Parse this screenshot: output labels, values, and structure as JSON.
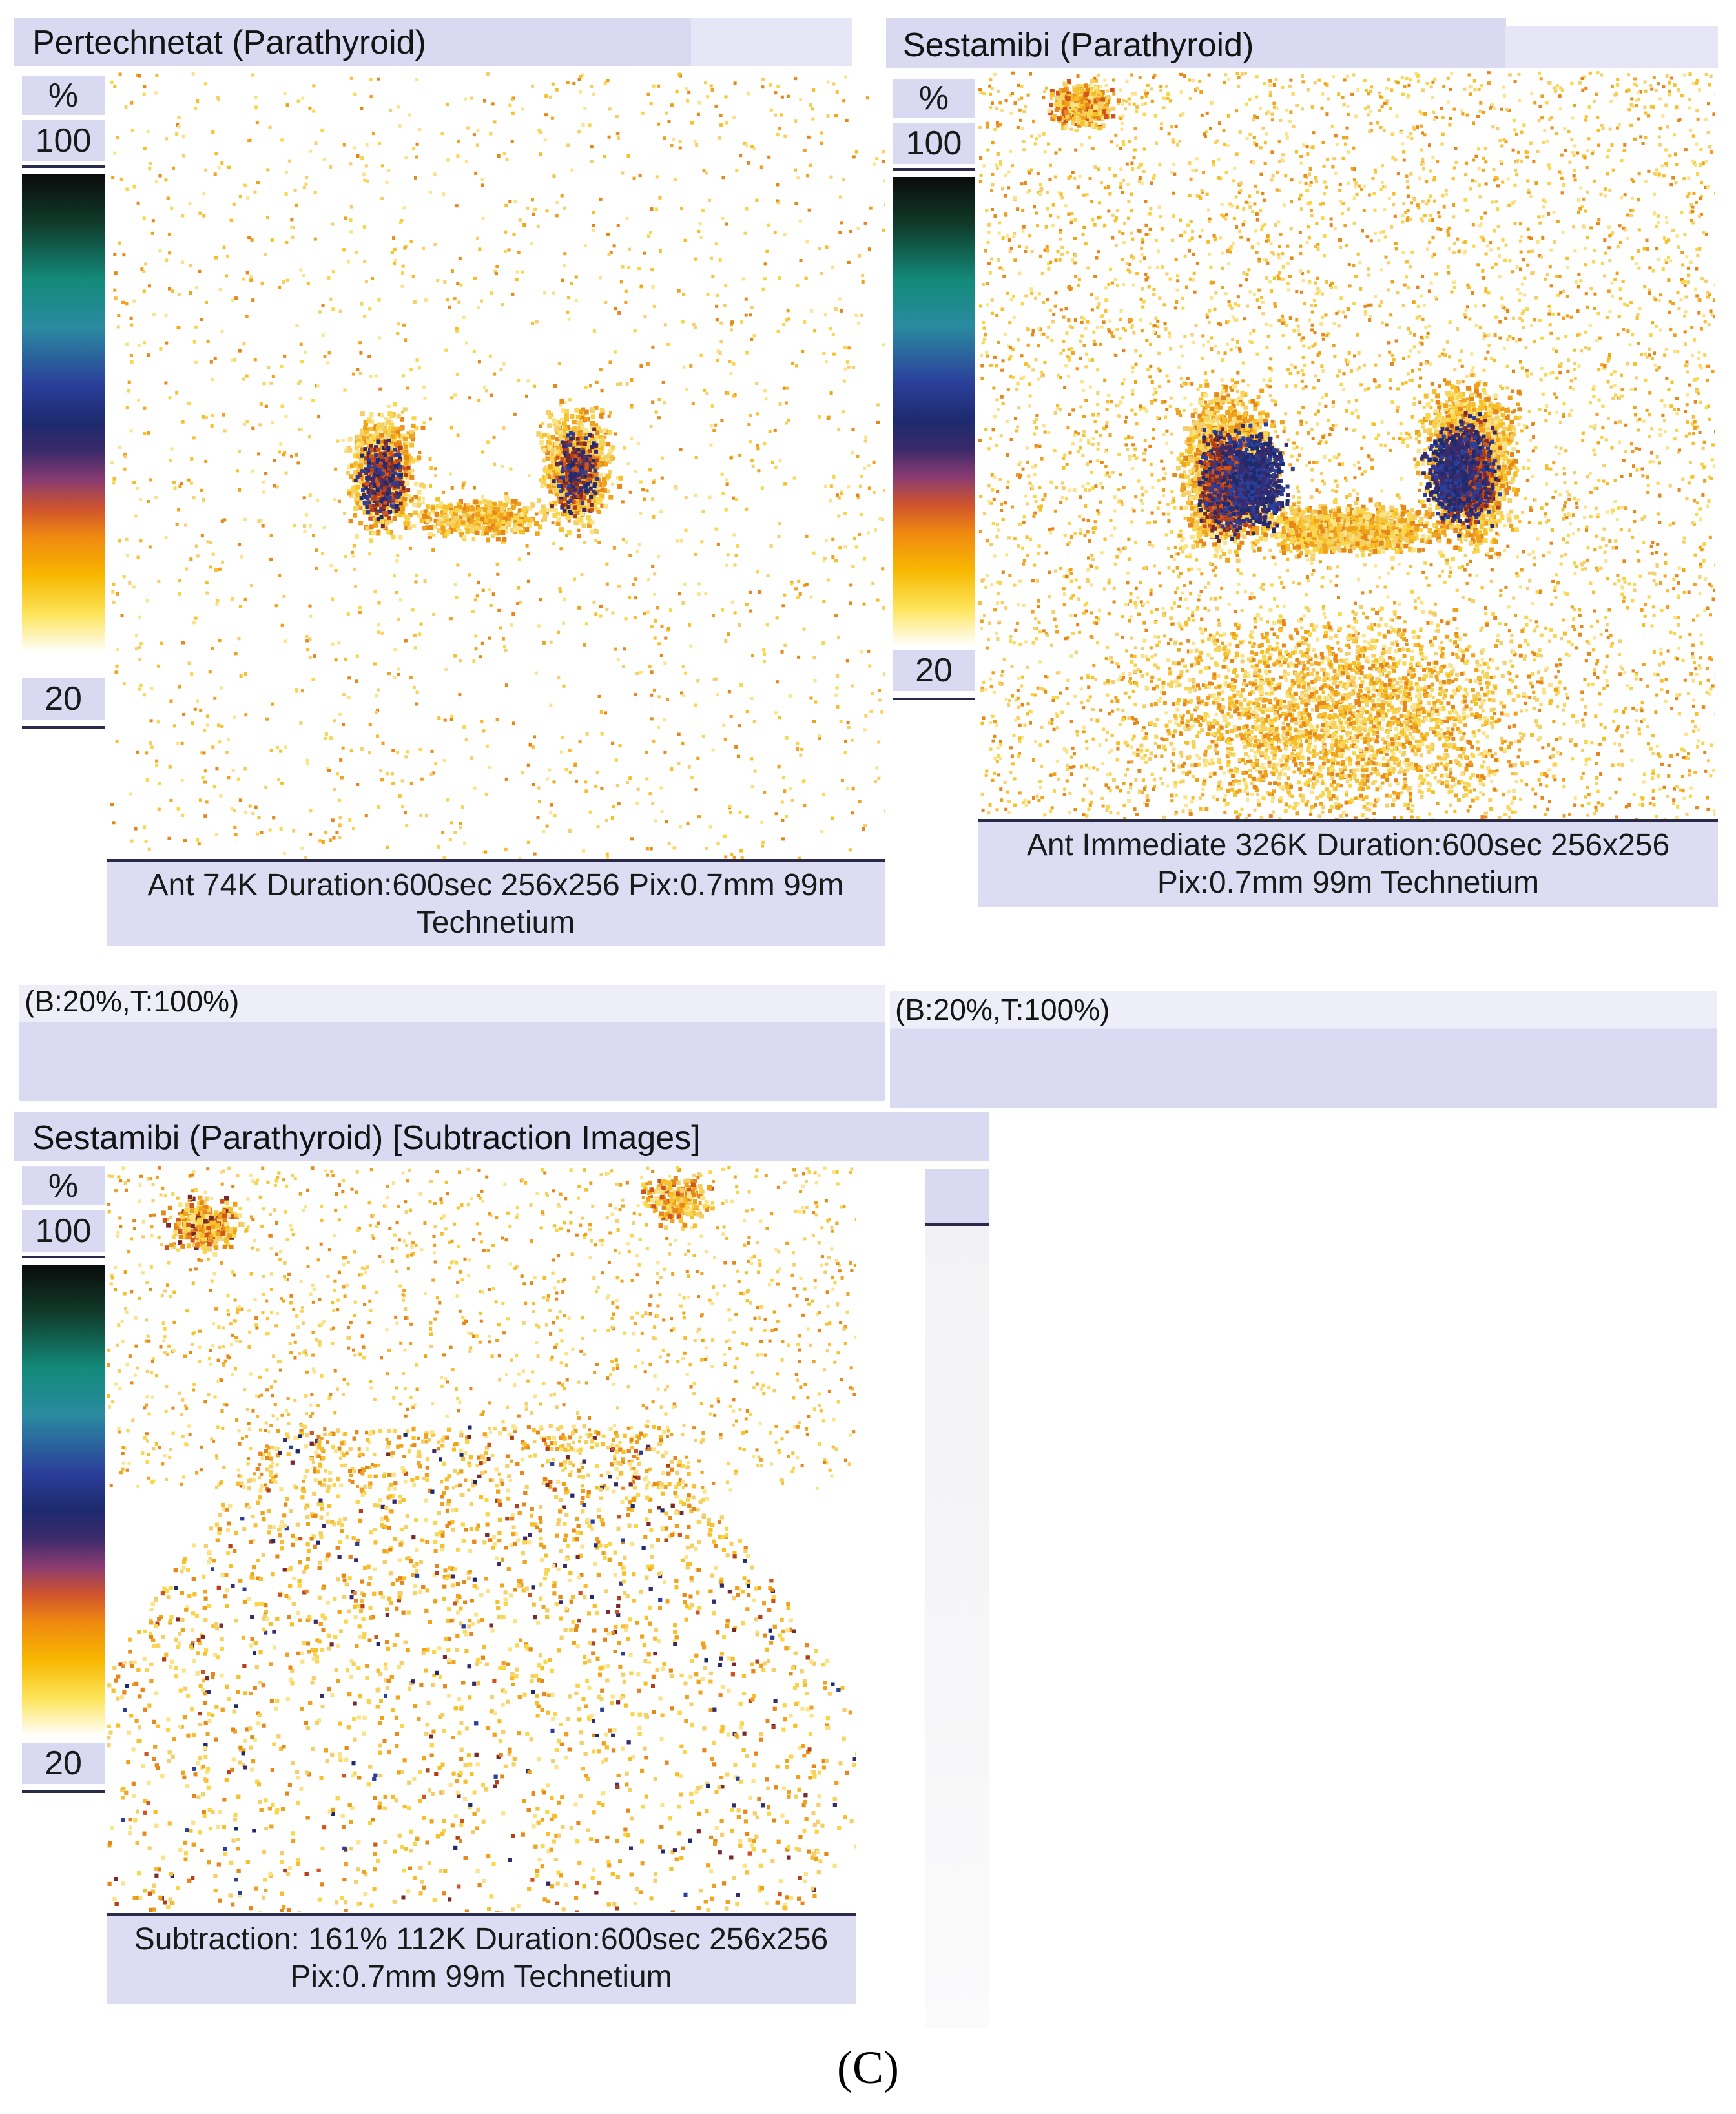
{
  "panel_top_left": {
    "title": "Pertechnetat (Parathyroid)",
    "scale_unit": "%",
    "scale_max": "100",
    "scale_min": "20",
    "caption_line1": "Ant 74K Duration:600sec 256x256 Pix:0.7mm 99m",
    "caption_line2": "Technetium",
    "range": "(B:20%,T:100%)"
  },
  "panel_top_right": {
    "title": "Sestamibi (Parathyroid)",
    "scale_unit": "%",
    "scale_max": "100",
    "scale_min": "20",
    "caption_line1": "Ant Immediate 326K Duration:600sec 256x256",
    "caption_line2": "Pix:0.7mm 99m Technetium",
    "range": "(B:20%,T:100%)"
  },
  "panel_bottom": {
    "title": "Sestamibi (Parathyroid) [Subtraction Images]",
    "scale_unit": "%",
    "scale_max": "100",
    "scale_min": "20",
    "caption_line1": "Subtraction: 161% 112K Duration:600sec 256x256",
    "caption_line2": "Pix:0.7mm 99m Technetium"
  },
  "figure_label": "(C)"
}
